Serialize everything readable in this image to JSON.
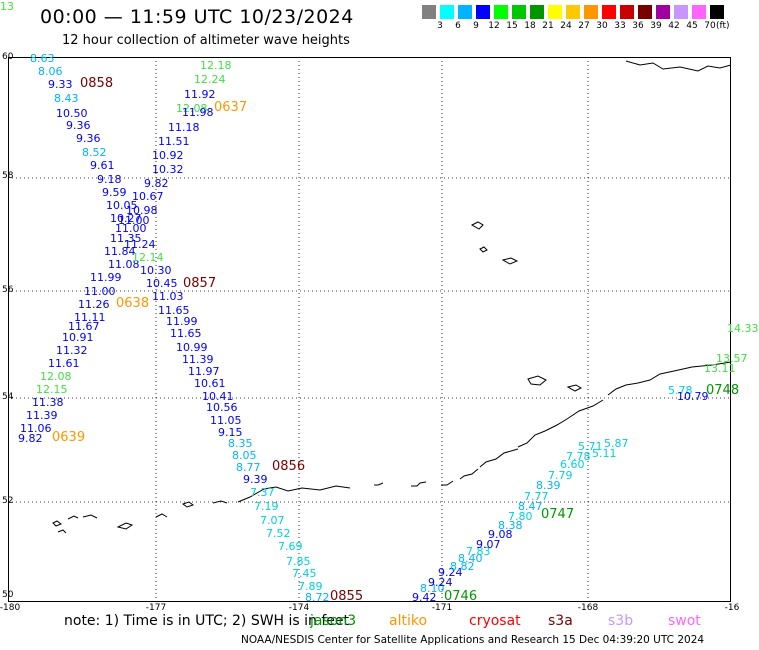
{
  "title": "00:00 — 11:59 UTC 10/23/2024",
  "subtitle": "12 hour collection of altimeter wave heights",
  "colorbar": {
    "colors": [
      "#808080",
      "#00ffff",
      "#00b4ff",
      "#0000ff",
      "#00ff00",
      "#00c800",
      "#009600",
      "#ffff00",
      "#ffc800",
      "#ff9600",
      "#ff0000",
      "#c80000",
      "#780000",
      "#a000a0",
      "#c896ff",
      "#ff64ff",
      "#000000"
    ],
    "ticks": [
      "3",
      "6",
      "9",
      "12",
      "15",
      "18",
      "21",
      "24",
      "27",
      "30",
      "33",
      "36",
      "39",
      "42",
      "45",
      "70"
    ],
    "unit": "(ft)"
  },
  "lat_labels": [
    "60",
    "58",
    "56",
    "54",
    "52",
    "50"
  ],
  "lon_labels": [
    "-180",
    "-177",
    "-174",
    "-171",
    "-168",
    "-16"
  ],
  "wave_labels": [
    {
      "t": "8.63",
      "c": "#00b4ff"
    },
    {
      "t": "8.06",
      "c": "#00b4ff"
    },
    {
      "t": "9.33",
      "c": "#0000ff"
    },
    {
      "t": "8.43",
      "c": "#00b4ff"
    },
    {
      "t": "10.50",
      "c": "#0000ff"
    },
    {
      "t": "9.36",
      "c": "#0000ff"
    },
    {
      "t": "9.36",
      "c": "#0000ff"
    },
    {
      "t": "8.52",
      "c": "#00b4ff"
    },
    {
      "t": "9.61",
      "c": "#0000ff"
    },
    {
      "t": "9.18",
      "c": "#0000ff"
    },
    {
      "t": "9.59",
      "c": "#0000ff"
    },
    {
      "t": "10.05",
      "c": "#0000ff"
    },
    {
      "t": "10.27",
      "c": "#0000ff"
    },
    {
      "t": "11.00",
      "c": "#0000ff"
    },
    {
      "t": "11.35",
      "c": "#0000ff"
    },
    {
      "t": "11.84",
      "c": "#0000ff"
    },
    {
      "t": "11.08",
      "c": "#0000ff"
    },
    {
      "t": "11.99",
      "c": "#0000ff"
    },
    {
      "t": "11.00",
      "c": "#0000ff"
    },
    {
      "t": "11.26",
      "c": "#0000ff"
    },
    {
      "t": "11.11",
      "c": "#0000ff"
    },
    {
      "t": "11.67",
      "c": "#0000ff"
    },
    {
      "t": "10.91",
      "c": "#0000ff"
    },
    {
      "t": "11.32",
      "c": "#0000ff"
    },
    {
      "t": "11.61",
      "c": "#0000ff"
    },
    {
      "t": "12.08",
      "c": "#40e040"
    },
    {
      "t": "12.15",
      "c": "#40e040"
    },
    {
      "t": "11.38",
      "c": "#0000ff"
    },
    {
      "t": "11.39",
      "c": "#0000ff"
    },
    {
      "t": "11.06",
      "c": "#0000ff"
    },
    {
      "t": "9.82",
      "c": "#0000ff"
    },
    {
      "t": "12.18",
      "c": "#40e040"
    },
    {
      "t": "12.24",
      "c": "#40e040"
    },
    {
      "t": "11.92",
      "c": "#0000ff"
    },
    {
      "t": "12.08",
      "c": "#40e040"
    },
    {
      "t": "11.98",
      "c": "#0000ff"
    },
    {
      "t": "11.18",
      "c": "#0000ff"
    },
    {
      "t": "11.51",
      "c": "#0000ff"
    },
    {
      "t": "10.92",
      "c": "#0000ff"
    },
    {
      "t": "10.32",
      "c": "#0000ff"
    },
    {
      "t": "9.82",
      "c": "#0000ff"
    },
    {
      "t": "10.67",
      "c": "#0000ff"
    },
    {
      "t": "10.98",
      "c": "#0000ff"
    },
    {
      "t": "11.00",
      "c": "#0000ff"
    },
    {
      "t": "11.24",
      "c": "#0000ff"
    },
    {
      "t": "12.14",
      "c": "#40e040"
    },
    {
      "t": "10.30",
      "c": "#0000ff"
    },
    {
      "t": "10.45",
      "c": "#0000ff"
    },
    {
      "t": "11.03",
      "c": "#0000ff"
    },
    {
      "t": "11.65",
      "c": "#0000ff"
    },
    {
      "t": "11.99",
      "c": "#0000ff"
    },
    {
      "t": "11.65",
      "c": "#0000ff"
    },
    {
      "t": "10.99",
      "c": "#0000ff"
    },
    {
      "t": "11.39",
      "c": "#0000ff"
    },
    {
      "t": "11.97",
      "c": "#0000ff"
    },
    {
      "t": "10.61",
      "c": "#0000ff"
    },
    {
      "t": "10.41",
      "c": "#0000ff"
    },
    {
      "t": "10.56",
      "c": "#0000ff"
    },
    {
      "t": "11.05",
      "c": "#0000ff"
    },
    {
      "t": "9.15",
      "c": "#0000ff"
    },
    {
      "t": "8.35",
      "c": "#00b4ff"
    },
    {
      "t": "8.05",
      "c": "#00b4ff"
    },
    {
      "t": "8.77",
      "c": "#00b4ff"
    },
    {
      "t": "9.39",
      "c": "#0000ff"
    },
    {
      "t": "7.37",
      "c": "#00d0e0"
    },
    {
      "t": "7.19",
      "c": "#00d0e0"
    },
    {
      "t": "7.07",
      "c": "#00d0e0"
    },
    {
      "t": "7.52",
      "c": "#00d0e0"
    },
    {
      "t": "7.69",
      "c": "#00d0e0"
    },
    {
      "t": "7.85",
      "c": "#00d0e0"
    },
    {
      "t": "7.45",
      "c": "#00d0e0"
    },
    {
      "t": "7.89",
      "c": "#00d0e0"
    },
    {
      "t": "8.72",
      "c": "#00b4ff"
    },
    {
      "t": "9.42",
      "c": "#0000ff"
    },
    {
      "t": "8.10",
      "c": "#00b4ff"
    },
    {
      "t": "9.24",
      "c": "#0000ff"
    },
    {
      "t": "9.24",
      "c": "#0000ff"
    },
    {
      "t": "8.82",
      "c": "#00b4ff"
    },
    {
      "t": "8.40",
      "c": "#00b4ff"
    },
    {
      "t": "7.83",
      "c": "#00d0e0"
    },
    {
      "t": "9.07",
      "c": "#0000ff"
    },
    {
      "t": "9.08",
      "c": "#0000ff"
    },
    {
      "t": "8.38",
      "c": "#00b4ff"
    },
    {
      "t": "7.80",
      "c": "#00d0e0"
    },
    {
      "t": "8.47",
      "c": "#00b4ff"
    },
    {
      "t": "7.77",
      "c": "#00d0e0"
    },
    {
      "t": "8.39",
      "c": "#00b4ff"
    },
    {
      "t": "7.79",
      "c": "#00d0e0"
    },
    {
      "t": "6.60",
      "c": "#00d0e0"
    },
    {
      "t": "7.78",
      "c": "#00d0e0"
    },
    {
      "t": "5.71",
      "c": "#00d0e0"
    },
    {
      "t": "5.11",
      "c": "#00d0e0"
    },
    {
      "t": "5.87",
      "c": "#00d0e0"
    },
    {
      "t": "5.78",
      "c": "#00d0e0"
    },
    {
      "t": "10.79",
      "c": "#0000ff"
    },
    {
      "t": "13.11",
      "c": "#40e040"
    },
    {
      "t": "13.57",
      "c": "#40e040"
    },
    {
      "t": "14.33",
      "c": "#40e040"
    },
    {
      "t": "13",
      "c": "#40e040"
    }
  ],
  "pass_stamps": [
    {
      "t": "0858",
      "c": "#780000"
    },
    {
      "t": "0637",
      "c": "#ff9600"
    },
    {
      "t": "0857",
      "c": "#780000"
    },
    {
      "t": "0638",
      "c": "#ff9600"
    },
    {
      "t": "0639",
      "c": "#ff9600"
    },
    {
      "t": "0856",
      "c": "#780000"
    },
    {
      "t": "0855",
      "c": "#780000"
    },
    {
      "t": "0746",
      "c": "#009600"
    },
    {
      "t": "0747",
      "c": "#009600"
    },
    {
      "t": "0748",
      "c": "#009600"
    }
  ],
  "note": "note:  1) Time is in UTC;  2) SWH is in feet",
  "satellites": [
    {
      "name": "jason3",
      "c": "#009600"
    },
    {
      "name": "altiko",
      "c": "#ff9600"
    },
    {
      "name": "cryosat",
      "c": "#ff0000"
    },
    {
      "name": "s3a",
      "c": "#780000"
    },
    {
      "name": "s3b",
      "c": "#c896ff"
    },
    {
      "name": "swot",
      "c": "#ff64ff"
    }
  ],
  "footer": "NOAA/NESDIS Center for Satellite Applications and Research     15 Dec 04:39:20 UTC 2024"
}
